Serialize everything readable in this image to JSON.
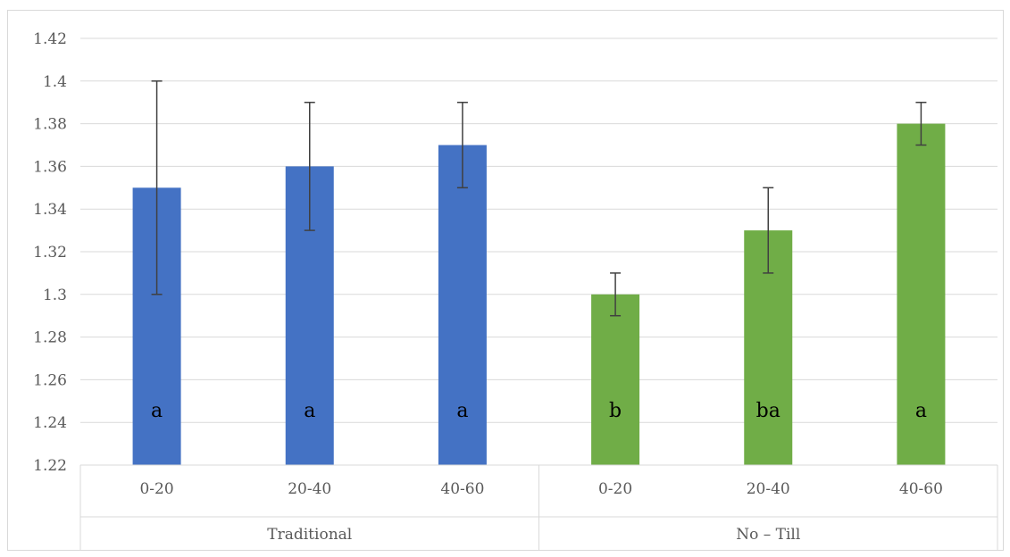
{
  "chart_data": {
    "type": "bar",
    "title": "",
    "xlabel": "",
    "ylabel": "",
    "ylim": [
      1.22,
      1.42
    ],
    "ytick_step": 0.02,
    "yticks": [
      "1.22",
      "1.24",
      "1.26",
      "1.28",
      "1.3",
      "1.32",
      "1.34",
      "1.36",
      "1.38",
      "1.4",
      "1.42"
    ],
    "grid": true,
    "legend": "none",
    "groups": [
      {
        "name": "Traditional",
        "color": "#4472c4",
        "bars": [
          {
            "category": "0-20",
            "value": 1.35,
            "err_low": 1.3,
            "err_high": 1.4,
            "letter": "a"
          },
          {
            "category": "20-40",
            "value": 1.36,
            "err_low": 1.33,
            "err_high": 1.39,
            "letter": "a"
          },
          {
            "category": "40-60",
            "value": 1.37,
            "err_low": 1.35,
            "err_high": 1.39,
            "letter": "a"
          }
        ]
      },
      {
        "name": "No – Till",
        "color": "#70ad47",
        "bars": [
          {
            "category": "0-20",
            "value": 1.3,
            "err_low": 1.29,
            "err_high": 1.31,
            "letter": "b"
          },
          {
            "category": "20-40",
            "value": 1.33,
            "err_low": 1.31,
            "err_high": 1.35,
            "letter": "ba"
          },
          {
            "category": "40-60",
            "value": 1.38,
            "err_low": 1.37,
            "err_high": 1.39,
            "letter": "a"
          }
        ]
      }
    ]
  }
}
